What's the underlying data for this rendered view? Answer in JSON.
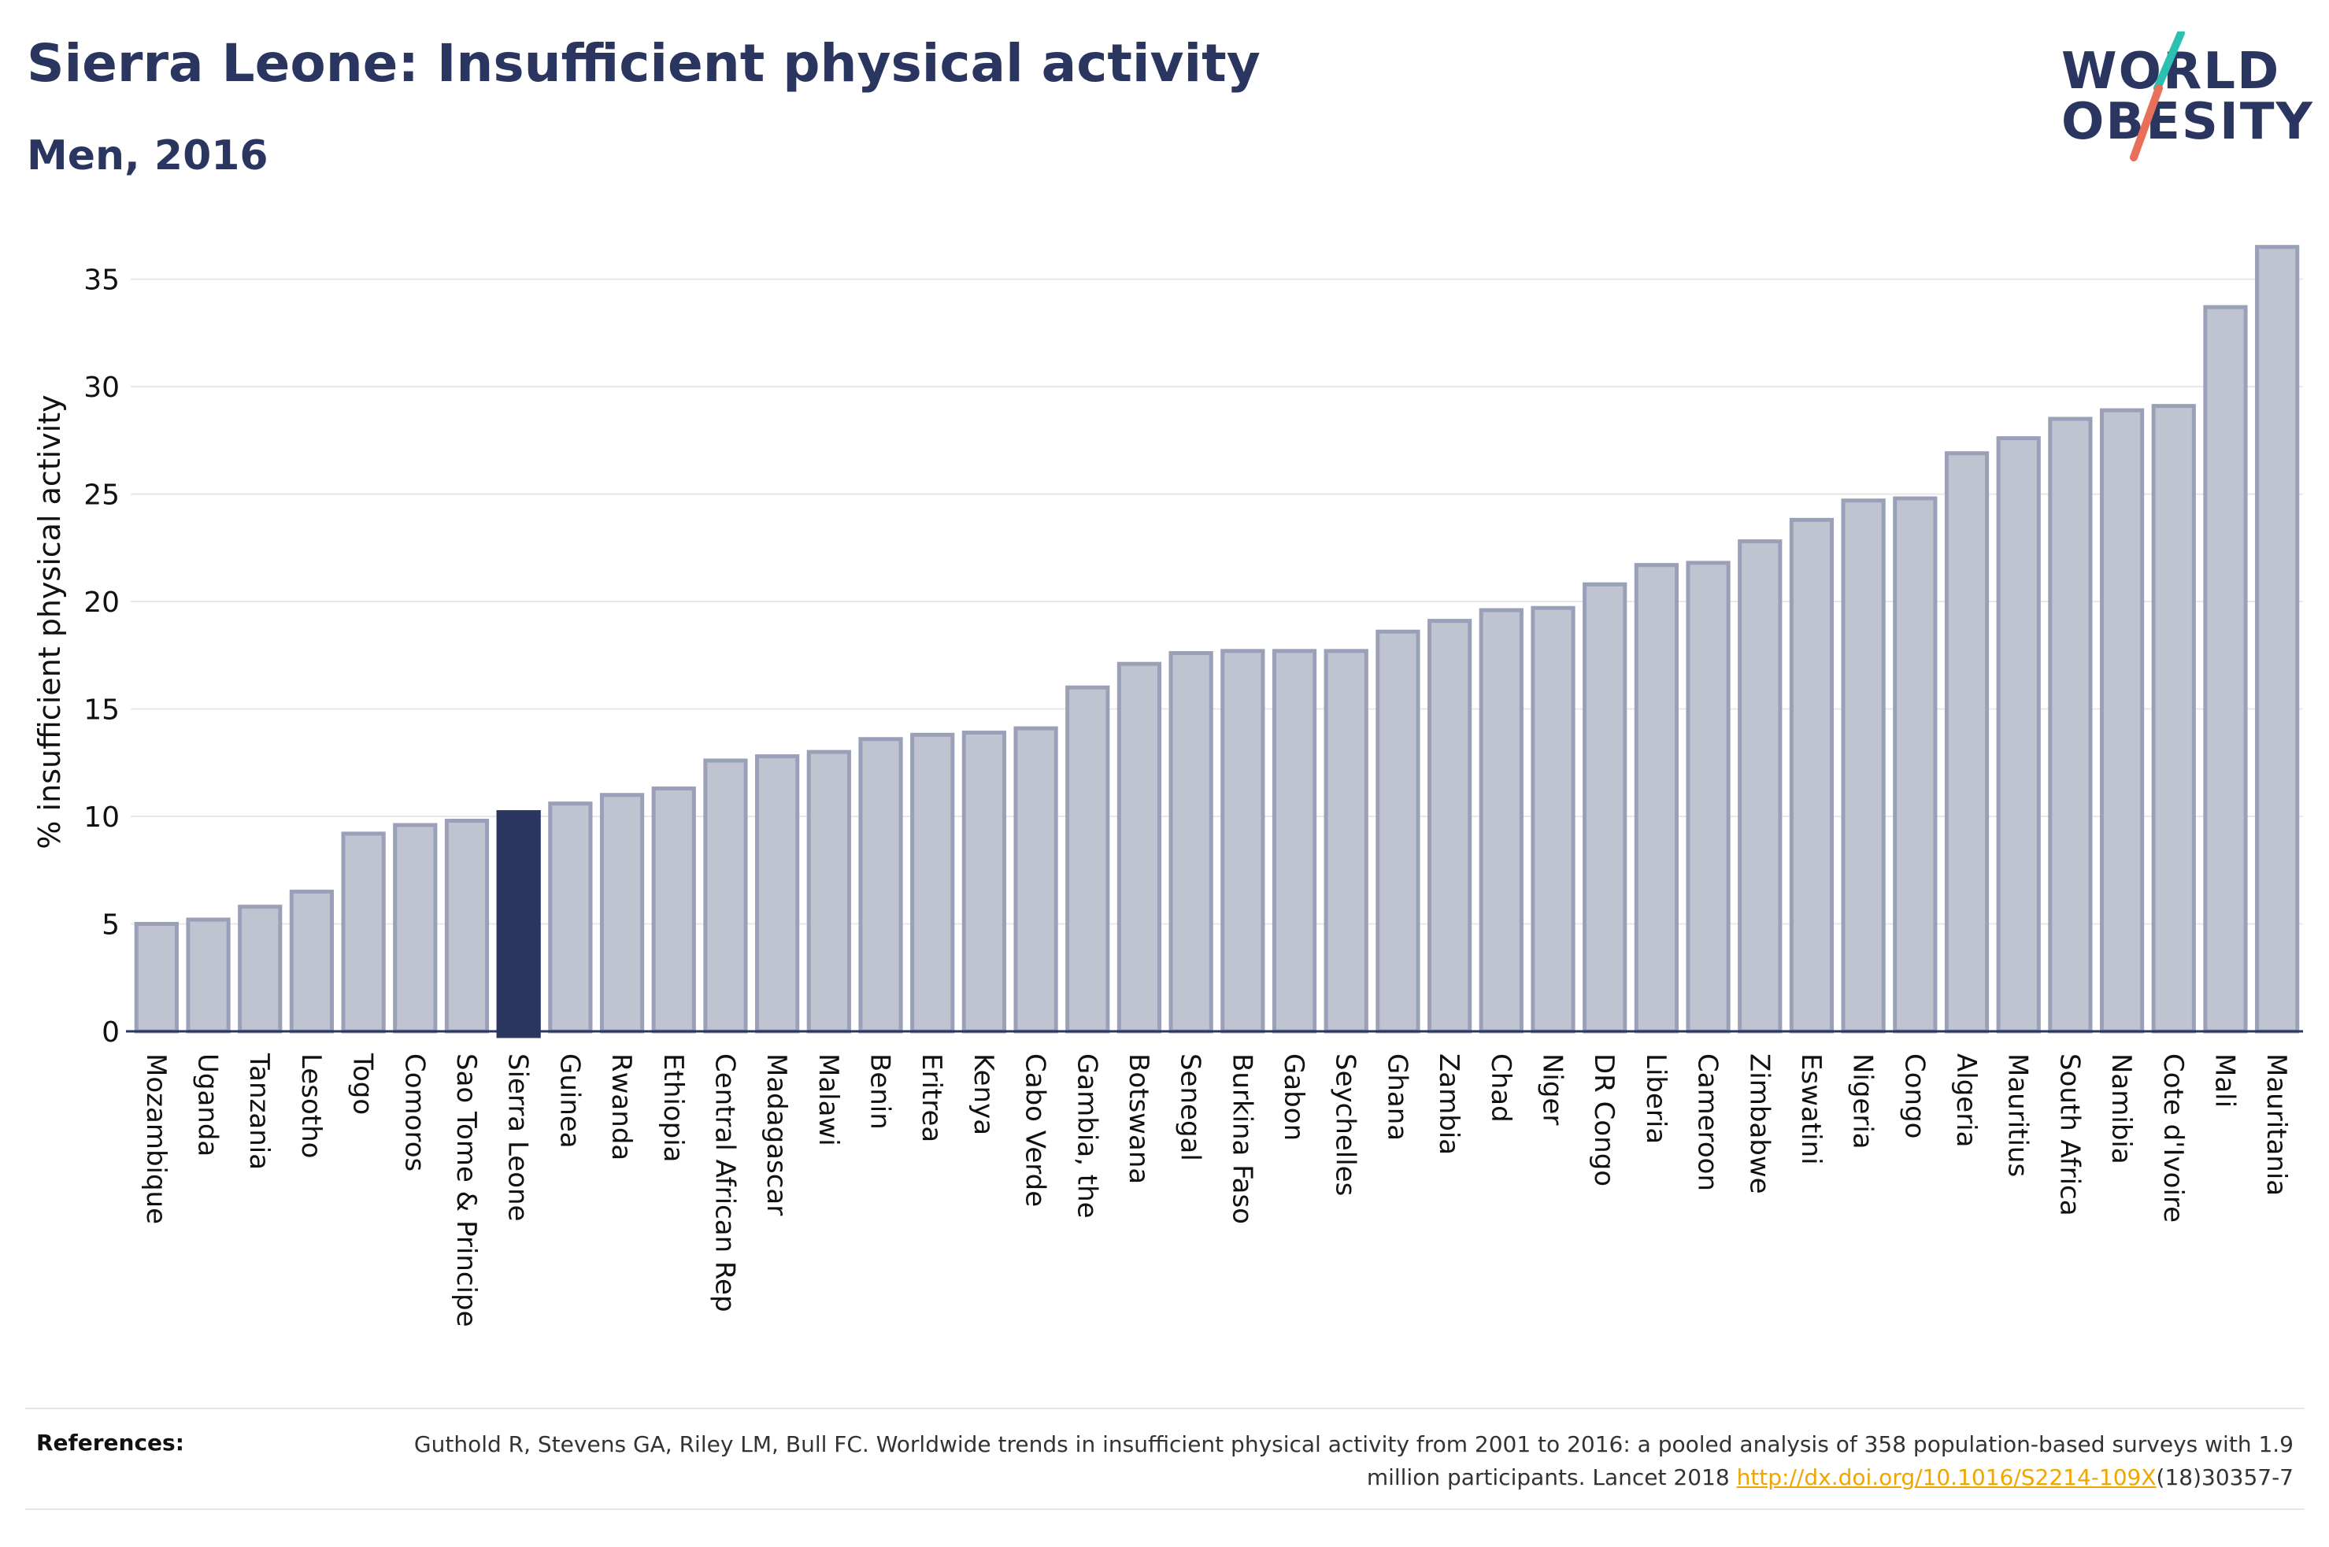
{
  "header": {
    "title": "Sierra Leone: Insufficient physical activity",
    "subtitle": "Men, 2016"
  },
  "logo": {
    "line1": "WORLD",
    "line2": "OBESITY"
  },
  "references": {
    "label": "References:",
    "text_before": "Guthold R, Stevens GA, Riley LM, Bull FC. Worldwide trends in insufficient physical activity from 2001 to 2016: a pooled analysis of 358 population-based surveys with 1.9 million participants. Lancet 2018 ",
    "link_text": "http://dx.doi.org/10.1016/S2214-109X",
    "text_after": "(18)30357-7"
  },
  "colors": {
    "bar": "#c0c4d0",
    "bar_border": "#9aa0b8",
    "highlight": "#2a3560",
    "grid": "#e8e8e8",
    "axis": "#2a3560",
    "link": "#f0a500",
    "logo_slash_top": "#2cc0b0",
    "logo_slash_bottom": "#e8705a"
  },
  "chart_data": {
    "type": "bar",
    "title": "Sierra Leone: Insufficient physical activity",
    "subtitle": "Men, 2016",
    "ylabel": "% insufficient physical activity",
    "xlabel": "",
    "ylim": [
      0,
      37
    ],
    "yticks": [
      0,
      5,
      10,
      15,
      20,
      25,
      30,
      35
    ],
    "grid": true,
    "highlight": "Sierra Leone",
    "categories": [
      "Mozambique",
      "Uganda",
      "Tanzania",
      "Lesotho",
      "Togo",
      "Comoros",
      "Sao Tome & Principe",
      "Sierra Leone",
      "Guinea",
      "Rwanda",
      "Ethiopia",
      "Central African Rep",
      "Madagascar",
      "Malawi",
      "Benin",
      "Eritrea",
      "Kenya",
      "Cabo Verde",
      "Gambia, the",
      "Botswana",
      "Senegal",
      "Burkina Faso",
      "Gabon",
      "Seychelles",
      "Ghana",
      "Zambia",
      "Chad",
      "Niger",
      "DR Congo",
      "Liberia",
      "Cameroon",
      "Zimbabwe",
      "Eswatini",
      "Nigeria",
      "Congo",
      "Algeria",
      "Mauritius",
      "South Africa",
      "Namibia",
      "Cote d'Ivoire",
      "Mali",
      "Mauritania"
    ],
    "values": [
      5.0,
      5.2,
      5.8,
      6.5,
      9.2,
      9.6,
      9.8,
      10.2,
      10.6,
      11.0,
      11.3,
      12.6,
      12.8,
      13.0,
      13.6,
      13.8,
      13.9,
      14.1,
      16.0,
      17.1,
      17.6,
      17.7,
      17.7,
      17.7,
      18.6,
      19.1,
      19.6,
      19.7,
      20.8,
      21.7,
      21.8,
      22.8,
      23.8,
      24.7,
      24.8,
      26.9,
      27.6,
      28.5,
      28.9,
      29.1,
      33.7,
      36.5
    ]
  }
}
